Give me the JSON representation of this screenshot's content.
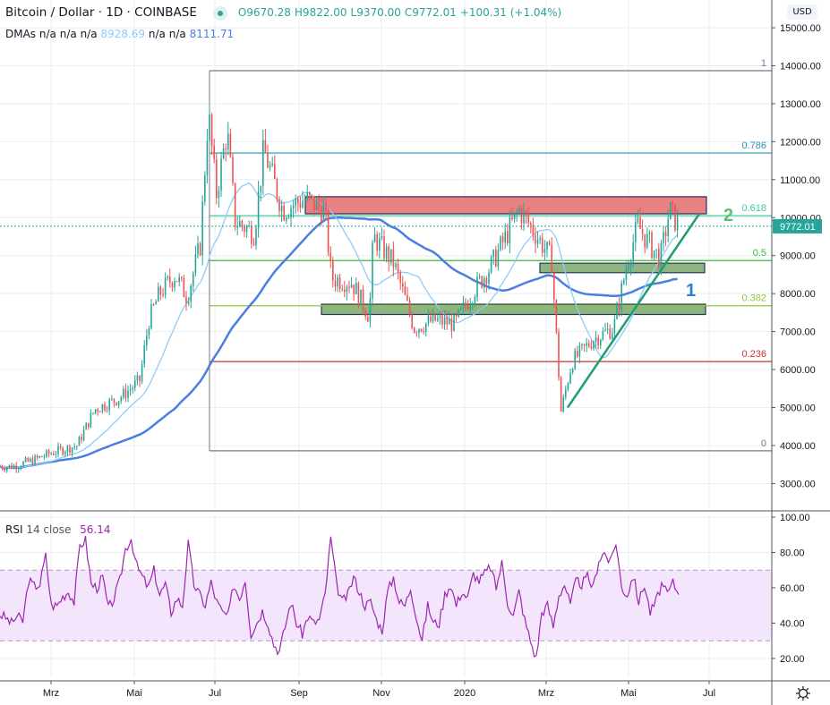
{
  "header": {
    "symbol_title": "Bitcoin / Dollar · 1D · COINBASE",
    "open": "O9670.28",
    "high": "H9822.00",
    "low": "L9370.00",
    "close": "C9772.01",
    "change": "+100.31 (+1.04%)",
    "market_status": "live-dot-icon"
  },
  "indicators": {
    "dmas_label": "DMAs",
    "dmas_values": [
      "n/a",
      "n/a",
      "n/a",
      "8928.69",
      "n/a",
      "n/a",
      "8111.71"
    ],
    "rsi_label": "RSI",
    "rsi_params": "14 close",
    "rsi_value": "56.14"
  },
  "price_axis": {
    "currency": "USD",
    "ticks": [
      "15000.00",
      "14000.00",
      "13000.00",
      "12000.00",
      "11000.00",
      "10000.00",
      "9000.00",
      "8000.00",
      "7000.00",
      "6000.00",
      "5000.00",
      "4000.00",
      "3000.00"
    ],
    "last_price": "9772.01"
  },
  "rsi_axis": {
    "ticks": [
      "100.00",
      "80.00",
      "60.00",
      "40.00",
      "20.00"
    ]
  },
  "time_axis": {
    "ticks": [
      "Mrz",
      "Mai",
      "Jul",
      "Sep",
      "Nov",
      "2020",
      "Mrz",
      "Mai",
      "Jul"
    ]
  },
  "annotations": {
    "label_1": "1",
    "label_2": "2"
  },
  "colors": {
    "up": "#26a69a",
    "down": "#ef5350",
    "ma_fast": "#90caf9",
    "ma_slow": "#4a7fe0",
    "rsi": "#9c27b0",
    "fib_1": "#787b86",
    "fib_0786": "#2196b9",
    "fib_0618": "#3dcc9a",
    "fib_05": "#33bb33",
    "fib_0382": "#93c83a",
    "fib_0236": "#d32f2f",
    "fib_0": "#787b86",
    "resistance_zone": "#e57373",
    "support_zone": "#8fb47f",
    "trendline": "#1f9e72"
  },
  "chart_data": [
    {
      "type": "candlestick",
      "title": "Bitcoin / Dollar · 1D · COINBASE",
      "ylabel": "USD",
      "ylim": [
        2700,
        15300
      ],
      "x_ticks": [
        "Mrz",
        "Mai",
        "Jul",
        "Sep",
        "Nov",
        "2020",
        "Mrz",
        "Mai",
        "Jul"
      ],
      "last": {
        "open": 9670.28,
        "high": 9822.0,
        "low": 9370.0,
        "close": 9772.01,
        "change": 100.31,
        "change_pct": 1.04
      },
      "price_path": [
        {
          "date": "2019-02-01",
          "close": 3450
        },
        {
          "date": "2019-02-15",
          "close": 3600
        },
        {
          "date": "2019-03-01",
          "close": 3800
        },
        {
          "date": "2019-03-20",
          "close": 4000
        },
        {
          "date": "2019-04-02",
          "close": 4950
        },
        {
          "date": "2019-04-20",
          "close": 5250
        },
        {
          "date": "2019-05-05",
          "close": 5700
        },
        {
          "date": "2019-05-12",
          "close": 7300
        },
        {
          "date": "2019-05-20",
          "close": 8000
        },
        {
          "date": "2019-06-01",
          "close": 8500
        },
        {
          "date": "2019-06-10",
          "close": 7900
        },
        {
          "date": "2019-06-20",
          "close": 9300
        },
        {
          "date": "2019-06-26",
          "close": 12800
        },
        {
          "date": "2019-07-02",
          "close": 10600
        },
        {
          "date": "2019-07-10",
          "close": 12300
        },
        {
          "date": "2019-07-16",
          "close": 9900
        },
        {
          "date": "2019-07-30",
          "close": 9600
        },
        {
          "date": "2019-08-06",
          "close": 11800
        },
        {
          "date": "2019-08-20",
          "close": 10200
        },
        {
          "date": "2019-09-05",
          "close": 10500
        },
        {
          "date": "2019-09-20",
          "close": 10200
        },
        {
          "date": "2019-09-25",
          "close": 8400
        },
        {
          "date": "2019-10-10",
          "close": 8300
        },
        {
          "date": "2019-10-23",
          "close": 7400
        },
        {
          "date": "2019-10-26",
          "close": 9500
        },
        {
          "date": "2019-11-10",
          "close": 8800
        },
        {
          "date": "2019-11-25",
          "close": 7100
        },
        {
          "date": "2019-12-10",
          "close": 7300
        },
        {
          "date": "2019-12-25",
          "close": 7200
        },
        {
          "date": "2020-01-08",
          "close": 8100
        },
        {
          "date": "2020-01-20",
          "close": 8700
        },
        {
          "date": "2020-02-10",
          "close": 10200
        },
        {
          "date": "2020-02-20",
          "close": 9700
        },
        {
          "date": "2020-03-05",
          "close": 8900
        },
        {
          "date": "2020-03-12",
          "close": 4900
        },
        {
          "date": "2020-03-20",
          "close": 6200
        },
        {
          "date": "2020-04-05",
          "close": 6800
        },
        {
          "date": "2020-04-20",
          "close": 7100
        },
        {
          "date": "2020-04-30",
          "close": 8800
        },
        {
          "date": "2020-05-08",
          "close": 9800
        },
        {
          "date": "2020-05-15",
          "close": 9400
        },
        {
          "date": "2020-05-25",
          "close": 8900
        },
        {
          "date": "2020-06-01",
          "close": 10200
        },
        {
          "date": "2020-06-08",
          "close": 9772
        }
      ],
      "moving_averages": [
        {
          "name": "DMA fast (light blue)",
          "last": 8928.69
        },
        {
          "name": "DMA slow (blue)",
          "last": 8111.71
        }
      ],
      "fibonacci": [
        {
          "level": "1",
          "price": 13870
        },
        {
          "level": "0.786",
          "price": 11700
        },
        {
          "level": "0.618",
          "price": 10050
        },
        {
          "level": "0.5",
          "price": 8870
        },
        {
          "level": "0.382",
          "price": 7680
        },
        {
          "level": "0.236",
          "price": 6210
        },
        {
          "level": "0",
          "price": 3860
        }
      ],
      "zones": [
        {
          "type": "resistance",
          "from": 10100,
          "to": 10550
        },
        {
          "type": "support",
          "from": 8550,
          "to": 8800
        },
        {
          "type": "support",
          "from": 7450,
          "to": 7720
        }
      ],
      "trendline": {
        "from": {
          "date": "2020-03-16",
          "price": 5000
        },
        "to": {
          "date": "2020-06-12",
          "price": 10100
        }
      }
    },
    {
      "type": "line",
      "title": "RSI 14 close",
      "ylim": [
        10,
        100
      ],
      "bands": {
        "upper": 70,
        "lower": 30
      },
      "last": 56.14,
      "series": [
        {
          "name": "RSI",
          "values_approx": [
            45,
            43,
            40,
            44,
            41,
            64,
            61,
            62,
            78,
            50,
            50,
            55,
            58,
            52,
            84,
            87,
            62,
            60,
            66,
            48,
            54,
            64,
            82,
            88,
            72,
            66,
            60,
            70,
            56,
            62,
            46,
            54,
            50,
            85,
            62,
            56,
            50,
            63,
            52,
            46,
            44,
            62,
            54,
            65,
            34,
            40,
            47,
            40,
            28,
            24,
            38,
            52,
            40,
            34,
            44,
            40,
            42,
            56,
            88,
            62,
            52,
            56,
            66,
            58,
            50,
            52,
            42,
            36,
            58,
            66,
            52,
            50,
            60,
            44,
            30,
            50,
            40,
            40,
            56,
            62,
            50,
            58,
            54,
            68,
            64,
            68,
            72,
            60,
            74,
            52,
            44,
            58,
            42,
            30,
            20,
            46,
            50,
            38,
            56,
            62,
            50,
            64,
            62,
            66,
            60,
            76,
            80,
            74,
            86,
            60,
            56,
            67,
            52,
            62,
            46,
            52,
            62,
            56,
            63,
            56
          ]
        }
      ]
    }
  ]
}
